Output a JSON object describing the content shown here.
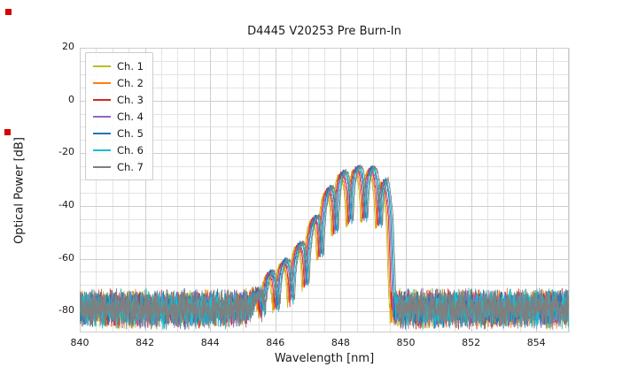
{
  "window": {
    "background": "#ffffff"
  },
  "decorations": {
    "marker_color": "#d40000",
    "markers": [
      {
        "x": 6,
        "y": 10
      },
      {
        "x": 5,
        "y": 146
      }
    ]
  },
  "chart_data": {
    "type": "line",
    "title": "D4445 V20253 Pre Burn-In",
    "xlabel": "Wavelength [nm]",
    "ylabel": "Optical Power [dB]",
    "xlim": [
      840,
      855
    ],
    "ylim": [
      -88,
      20
    ],
    "xticks": [
      840,
      842,
      844,
      846,
      848,
      850,
      852,
      854
    ],
    "yticks": [
      20,
      0,
      -20,
      -40,
      -60,
      -80
    ],
    "minor_x_step_nm": 0.5,
    "minor_y_step_db": 5,
    "grid": true,
    "major_grid_color": "#cfcfcf",
    "minor_grid_color": "#e3e3e3",
    "axes_border_color": "#cccccc",
    "legend_position": "upper-left",
    "series": [
      {
        "name": "Ch. 1",
        "color": "#bcbd22",
        "offset_nm": -0.105
      },
      {
        "name": "Ch. 2",
        "color": "#ff7f0e",
        "offset_nm": -0.07
      },
      {
        "name": "Ch. 3",
        "color": "#d62728",
        "offset_nm": -0.035
      },
      {
        "name": "Ch. 4",
        "color": "#9467bd",
        "offset_nm": 0.0
      },
      {
        "name": "Ch. 5",
        "color": "#1f77b4",
        "offset_nm": 0.035
      },
      {
        "name": "Ch. 6",
        "color": "#17becf",
        "offset_nm": 0.07
      },
      {
        "name": "Ch. 7",
        "color": "#7f7f7f",
        "offset_nm": 0.105
      }
    ],
    "signal_model": {
      "description": "Laser spectrum: flat noise floor across 840-855 nm with multimode lasing band ~845.5-849.6 nm peaking near -25 dB at ~848.5 nm",
      "noise_floor_db": {
        "mean": -79,
        "min": -87,
        "max": -71
      },
      "signal_band_nm": [
        845.3,
        849.6
      ],
      "peak_wavelength_nm": 848.5,
      "peak_power_db": -25,
      "mode_spacing_nm": 0.45,
      "mode_depth_db": 20,
      "envelope_points_nm_db": [
        [
          844.8,
          -95
        ],
        [
          845.2,
          -82
        ],
        [
          845.5,
          -72
        ],
        [
          845.8,
          -66
        ],
        [
          846.2,
          -62
        ],
        [
          846.6,
          -57
        ],
        [
          847.0,
          -50
        ],
        [
          847.35,
          -40
        ],
        [
          847.7,
          -32
        ],
        [
          848.0,
          -28
        ],
        [
          848.3,
          -26.5
        ],
        [
          848.6,
          -25.5
        ],
        [
          848.9,
          -26
        ],
        [
          849.15,
          -27.5
        ],
        [
          849.35,
          -30
        ],
        [
          849.5,
          -42
        ],
        [
          849.62,
          -75
        ],
        [
          849.8,
          -110
        ]
      ]
    }
  }
}
